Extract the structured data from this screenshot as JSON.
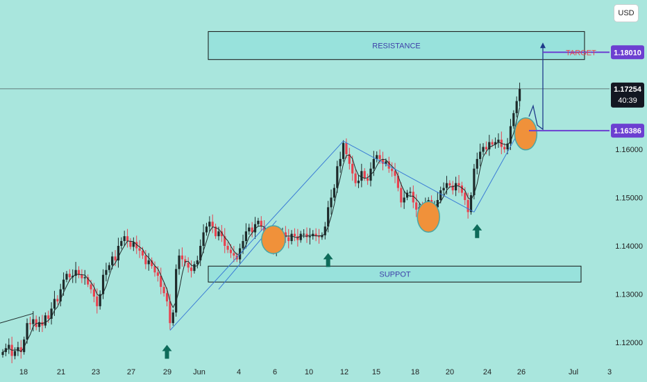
{
  "currency_button": "USD",
  "colors": {
    "background": "#a9e6dd",
    "bull": "#1e2a2a",
    "bear": "#e8424f",
    "trendline": "#3a7bd5",
    "zone_fill": "#98e2dc",
    "marker": "#f0913a",
    "arrow": "#0e6b5a",
    "price_tag": "#6c3fd1",
    "target_text": "#e8424f"
  },
  "annotations": {
    "resistance_label": "RESISTANCE",
    "support_label": "SUPPOT",
    "target_label": "TARGET"
  },
  "price_tags": {
    "target": "1.18010",
    "current_price": "1.17254",
    "countdown": "40:39",
    "entry": "1.16386"
  },
  "chart_data": {
    "type": "candlestick",
    "y_axis": {
      "range": [
        1.116,
        1.192
      ],
      "ticks": [
        "1.16000",
        "1.15000",
        "1.14000",
        "1.13000",
        "1.12000"
      ]
    },
    "x_axis": {
      "ticks": [
        "18",
        "21",
        "23",
        "27",
        "29",
        "Jun",
        "4",
        "6",
        "10",
        "12",
        "15",
        "18",
        "20",
        "24",
        "26",
        "Jul",
        "3"
      ]
    },
    "zones": [
      {
        "label": "RESISTANCE",
        "low": 1.1786,
        "high": 1.1844
      },
      {
        "label": "SUPPOT",
        "low": 1.1325,
        "high": 1.1358
      }
    ],
    "levels": {
      "current": 1.17254,
      "entry": 1.16386,
      "target": 1.1801
    },
    "close_series": [
      1.118,
      1.1188,
      1.1195,
      1.1172,
      1.1182,
      1.119,
      1.118,
      1.1206,
      1.124,
      1.1238,
      1.1248,
      1.1232,
      1.1242,
      1.1235,
      1.1256,
      1.1249,
      1.127,
      1.129,
      1.1285,
      1.131,
      1.133,
      1.1342,
      1.1335,
      1.1338,
      1.135,
      1.134,
      1.1333,
      1.1335,
      1.132,
      1.131,
      1.1295,
      1.1275,
      1.13,
      1.134,
      1.135,
      1.136,
      1.1378,
      1.137,
      1.14,
      1.141,
      1.142,
      1.141,
      1.1398,
      1.1408,
      1.1395,
      1.139,
      1.138,
      1.1362,
      1.137,
      1.1358,
      1.1345,
      1.1338,
      1.1315,
      1.1302,
      1.1285,
      1.124,
      1.1262,
      1.1352,
      1.138,
      1.1372,
      1.1365,
      1.1355,
      1.1348,
      1.1362,
      1.137,
      1.14,
      1.1428,
      1.144,
      1.145,
      1.144,
      1.142,
      1.143,
      1.142,
      1.14,
      1.1392,
      1.1385,
      1.138,
      1.1372,
      1.1395,
      1.141,
      1.143,
      1.1438,
      1.1428,
      1.1445,
      1.1452,
      1.144,
      1.142,
      1.141,
      1.14,
      1.1392,
      1.141,
      1.1425,
      1.1428,
      1.1418,
      1.141,
      1.1425,
      1.142,
      1.1412,
      1.1425,
      1.1425,
      1.1418,
      1.142,
      1.1425,
      1.142,
      1.1418,
      1.1422,
      1.144,
      1.148,
      1.15,
      1.152,
      1.1565,
      1.158,
      1.1613,
      1.159,
      1.157,
      1.155,
      1.153,
      1.1535,
      1.1555,
      1.154,
      1.1535,
      1.156,
      1.158,
      1.1588,
      1.158,
      1.157,
      1.1575,
      1.156,
      1.1555,
      1.1545,
      1.152,
      1.149,
      1.15,
      1.151,
      1.1512,
      1.149,
      1.1475,
      1.148,
      1.147,
      1.1485,
      1.1495,
      1.1475,
      1.148,
      1.1495,
      1.1515,
      1.152,
      1.153,
      1.1525,
      1.1515,
      1.153,
      1.1525,
      1.151,
      1.1495,
      1.147,
      1.1505,
      1.156,
      1.158,
      1.1595,
      1.1605,
      1.16,
      1.1615,
      1.161,
      1.1615,
      1.162,
      1.1605,
      1.16,
      1.1612,
      1.1648,
      1.1675,
      1.17,
      1.1725
    ]
  }
}
